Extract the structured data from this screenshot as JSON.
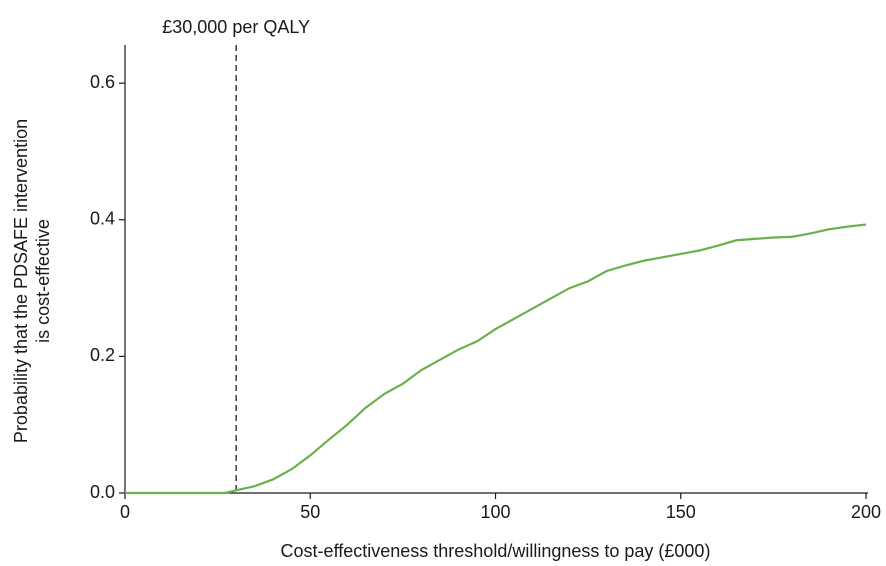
{
  "chart_data": {
    "type": "line",
    "xlabel": "Cost-effectiveness threshold/willingness to pay (£000)",
    "ylabel": [
      "Probability that the PDSAFE intervention",
      "is cost-effective"
    ],
    "x": [
      0,
      10,
      20,
      27,
      30,
      35,
      40,
      45,
      50,
      55,
      60,
      65,
      70,
      75,
      80,
      85,
      90,
      95,
      100,
      105,
      110,
      115,
      120,
      125,
      130,
      135,
      140,
      145,
      150,
      155,
      160,
      165,
      170,
      175,
      180,
      185,
      190,
      195,
      200
    ],
    "values": [
      0,
      0,
      0,
      0,
      0.004,
      0.01,
      0.02,
      0.035,
      0.055,
      0.078,
      0.1,
      0.125,
      0.145,
      0.16,
      0.18,
      0.195,
      0.21,
      0.222,
      0.24,
      0.255,
      0.27,
      0.285,
      0.3,
      0.31,
      0.325,
      0.333,
      0.34,
      0.345,
      0.35,
      0.355,
      0.362,
      0.37,
      0.372,
      0.374,
      0.375,
      0.38,
      0.386,
      0.39,
      0.393
    ],
    "color": "#6ab04c",
    "xlim": [
      0,
      200
    ],
    "ylim": [
      0,
      0.65
    ],
    "xticks": [
      0,
      50,
      100,
      150,
      200
    ],
    "yticks": [
      {
        "value": 0,
        "label": "0.0"
      },
      0.2,
      0.4,
      0.6
    ],
    "annotations": [
      {
        "text": "£30,000 per QALY",
        "x": 30
      }
    ],
    "grid": false
  }
}
